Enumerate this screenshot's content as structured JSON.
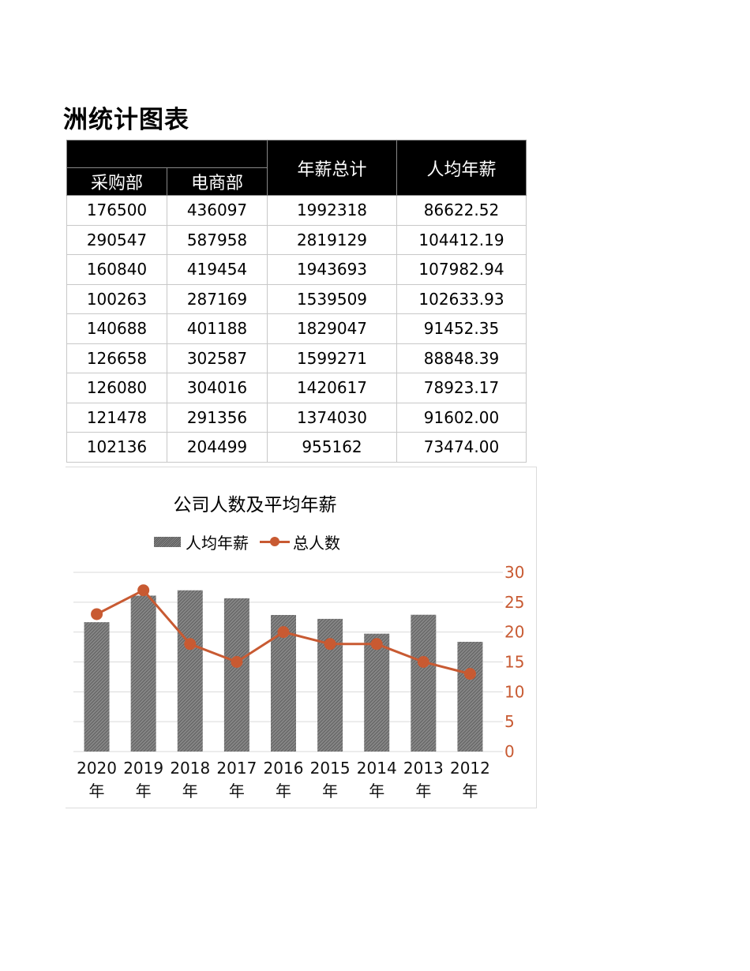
{
  "page": {
    "title": "洲统计图表"
  },
  "table": {
    "headers": {
      "group_top": "",
      "sub": [
        "采购部",
        "电商部"
      ],
      "total": "年薪总计",
      "avg": "人均年薪"
    },
    "rows": [
      [
        "176500",
        "436097",
        "1992318",
        "86622.52"
      ],
      [
        "290547",
        "587958",
        "2819129",
        "104412.19"
      ],
      [
        "160840",
        "419454",
        "1943693",
        "107982.94"
      ],
      [
        "100263",
        "287169",
        "1539509",
        "102633.93"
      ],
      [
        "140688",
        "401188",
        "1829047",
        "91452.35"
      ],
      [
        "126658",
        "302587",
        "1599271",
        "88848.39"
      ],
      [
        "126080",
        "304016",
        "1420617",
        "78923.17"
      ],
      [
        "121478",
        "291356",
        "1374030",
        "91602.00"
      ],
      [
        "102136",
        "204499",
        "955162",
        "73474.00"
      ]
    ]
  },
  "chart_data": {
    "type": "bar",
    "title": "公司人数及平均年薪",
    "categories": [
      "2020年",
      "2019年",
      "2018年",
      "2017年",
      "2016年",
      "2015年",
      "2014年",
      "2013年",
      "2012年"
    ],
    "series": [
      {
        "name": "人均年薪",
        "type": "bar",
        "axis": "primary-hidden",
        "values": [
          86622.52,
          104412.19,
          107982.94,
          102633.93,
          91452.35,
          88848.39,
          78923.17,
          91602.0,
          73474.0
        ],
        "color": "#6e6e6e"
      },
      {
        "name": "总人数",
        "type": "line",
        "axis": "secondary",
        "values": [
          23,
          27,
          18,
          15,
          20,
          18,
          18,
          15,
          13
        ],
        "color": "#c85a32"
      }
    ],
    "xlabel": "",
    "ylabel": "",
    "y2lim": [
      0,
      30
    ],
    "y2ticks": [
      "0",
      "5",
      "10",
      "15",
      "20",
      "25",
      "30"
    ],
    "ylim_hidden": [
      0,
      120000
    ],
    "grid": true,
    "legend_position": "top"
  },
  "legend": {
    "bar_label": "人均年薪",
    "line_label": "总人数"
  }
}
